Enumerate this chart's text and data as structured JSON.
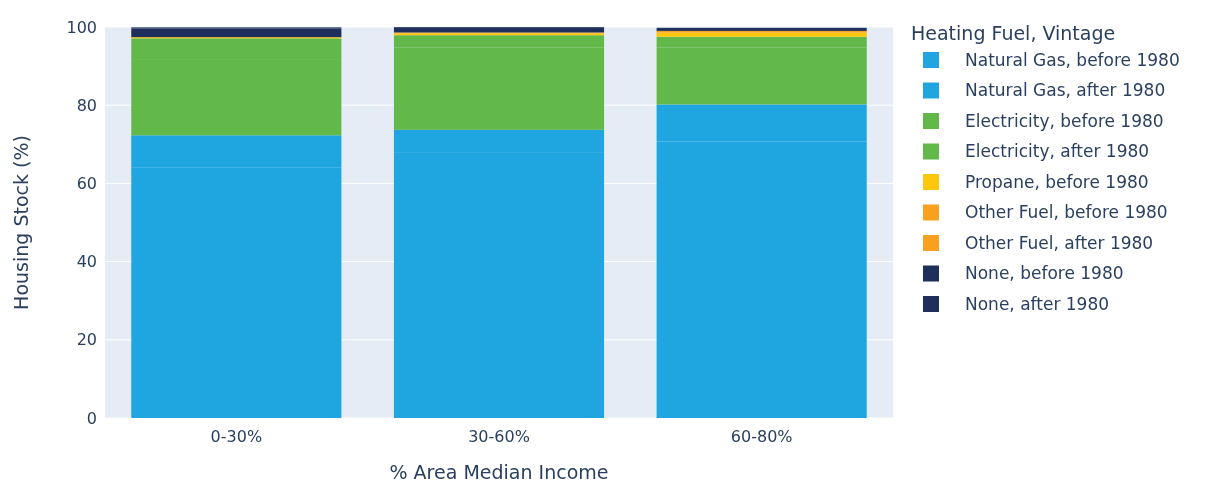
{
  "chart_data": {
    "type": "bar",
    "stacked": true,
    "xlabel": "% Area Median Income",
    "ylabel": "Housing Stock (%)",
    "legend_title": "Heating Fuel, Vintage",
    "legend": "right",
    "grid": "y",
    "categories": [
      "0-30%",
      "30-60%",
      "60-80%"
    ],
    "ylim": [
      0,
      100
    ],
    "yticks": [
      0,
      20,
      40,
      60,
      80,
      100
    ],
    "series": [
      {
        "name": "Natural Gas, before 1980",
        "color": "#1fa6e0",
        "values": [
          64,
          68,
          70.7
        ]
      },
      {
        "name": "Natural Gas, after 1980",
        "color": "#1fa6e0",
        "values": [
          8.3,
          5.7,
          9.5
        ]
      },
      {
        "name": "Electricity, before 1980",
        "color": "#62b94a",
        "values": [
          19.5,
          21.1,
          14.6
        ]
      },
      {
        "name": "Electricity, after 1980",
        "color": "#62b94a",
        "values": [
          5.3,
          3.1,
          2.7
        ]
      },
      {
        "name": "Propane, before 1980",
        "color": "#fcc70d",
        "values": [
          0.3,
          0.5,
          1.1
        ]
      },
      {
        "name": "Other Fuel, before 1980",
        "color": "#f7a11e",
        "values": [
          null,
          0.2,
          0.4
        ]
      },
      {
        "name": "Other Fuel, after 1980",
        "color": "#f7a11e",
        "values": [
          0,
          0,
          null
        ]
      },
      {
        "name": "None, before 1980",
        "color": "#1f2f5c",
        "values": [
          2.2,
          1.2,
          0.5
        ]
      },
      {
        "name": "None, after 1980",
        "color": "#1f2f5c",
        "values": [
          0.3,
          0.2,
          0.3
        ]
      }
    ]
  }
}
